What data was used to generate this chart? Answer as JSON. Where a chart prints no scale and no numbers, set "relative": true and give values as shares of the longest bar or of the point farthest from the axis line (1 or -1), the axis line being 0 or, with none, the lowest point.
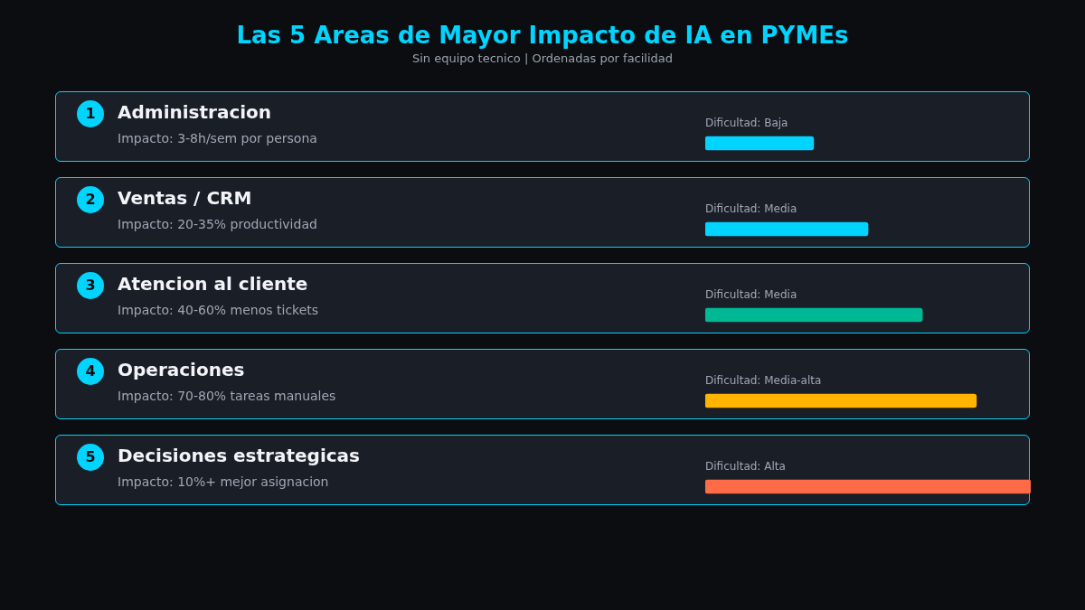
{
  "chart_data": {
    "type": "bar",
    "orientation": "horizontal",
    "relative": true,
    "title": "Las 5 Areas de Mayor Impacto de IA en PYMEs",
    "subtitle": "Sin equipo tecnico | Ordenadas por facilidad",
    "categories": [
      "Administracion",
      "Ventas / CRM",
      "Atencion al cliente",
      "Operaciones",
      "Decisiones estrategicas"
    ],
    "values": [
      0.333,
      0.5,
      0.667,
      0.833,
      1
    ],
    "colors": [
      "#00d4ff",
      "#00d4ff",
      "#00b894",
      "#ffb400",
      "#ff6b47"
    ],
    "annotations": [
      "1",
      "Impacto: 3-8h/sem por persona",
      "Dificultad: Baja",
      "2",
      "Impacto: 20-35% productividad",
      "Dificultad: Media",
      "3",
      "Impacto: 40-60% menos tickets",
      "Dificultad: Media",
      "4",
      "Impacto: 70-80% tareas manuales",
      "Dificultad: Media-alta",
      "5",
      "Impacto: 10%+ mejor asignacion",
      "Dificultad: Alta"
    ]
  }
}
